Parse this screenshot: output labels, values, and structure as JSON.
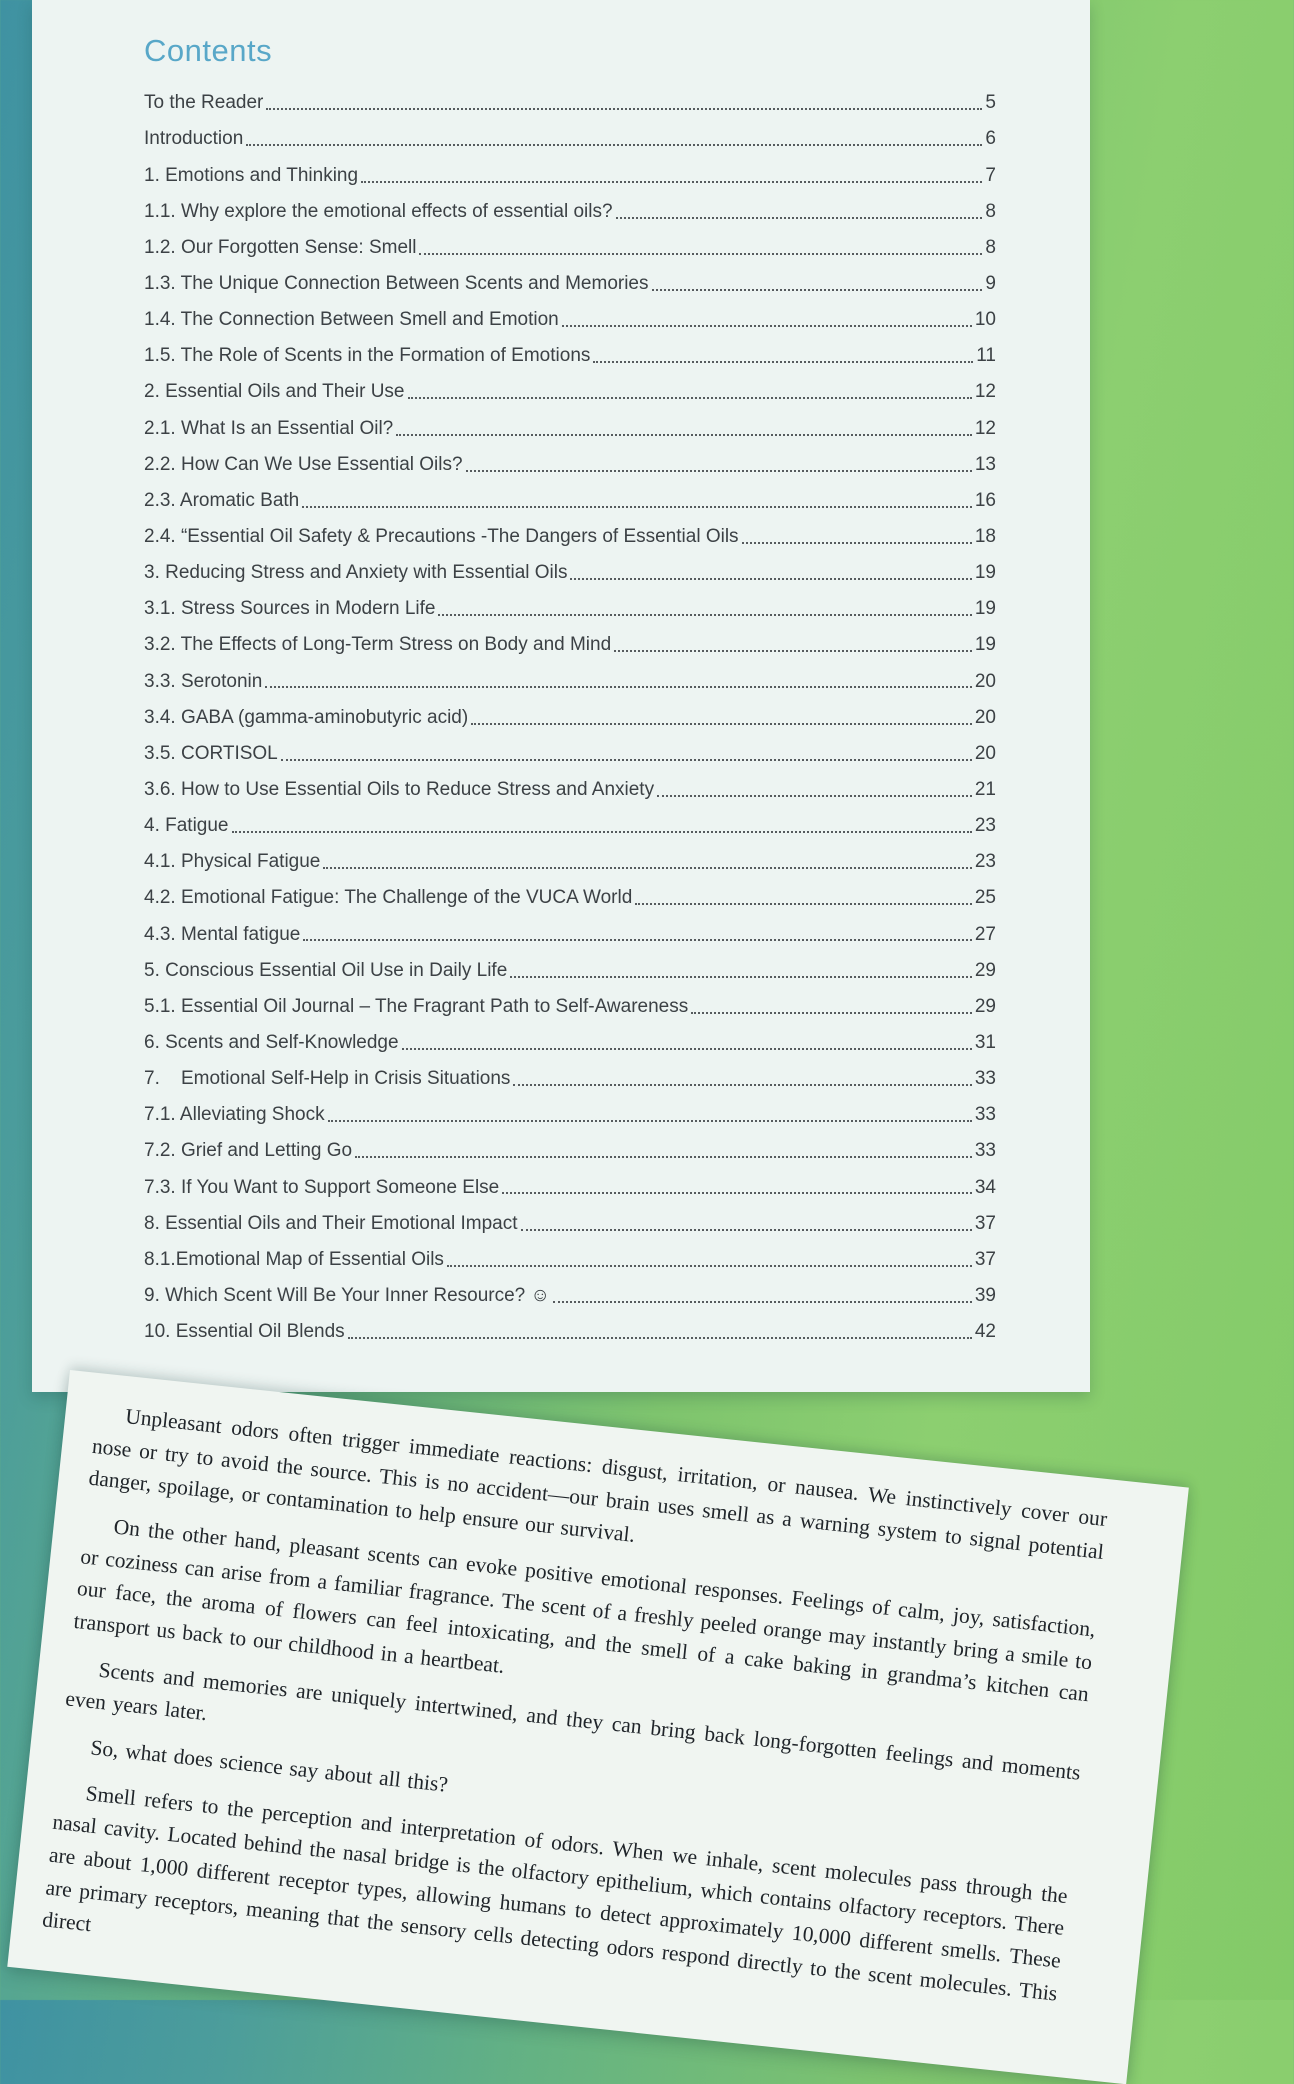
{
  "background": {
    "teal_color": "#3f92a2",
    "green_color": "#8ccf70"
  },
  "toc_page": {
    "title": "Contents",
    "title_color": "#58a7c8",
    "entries": [
      {
        "title": "To the Reader",
        "page": "5"
      },
      {
        "title": "Introduction",
        "page": "6"
      },
      {
        "title": "1. Emotions and Thinking",
        "page": "7"
      },
      {
        "title": "1.1. Why explore the emotional effects of essential oils?",
        "page": "8"
      },
      {
        "title": "1.2. Our Forgotten Sense: Smell",
        "page": "8"
      },
      {
        "title": "1.3. The Unique Connection Between Scents and Memories",
        "page": "9"
      },
      {
        "title": "1.4. The Connection Between Smell and Emotion",
        "page": "10"
      },
      {
        "title": "1.5. The Role of Scents in the Formation of Emotions",
        "page": "11"
      },
      {
        "title": "2. Essential Oils and Their Use",
        "page": "12"
      },
      {
        "title": "2.1. What Is an Essential Oil?",
        "page": "12"
      },
      {
        "title": "2.2. How Can We Use Essential Oils?",
        "page": "13"
      },
      {
        "title": "2.3. Aromatic Bath",
        "page": "16"
      },
      {
        "title": "2.4. “Essential Oil Safety & Precautions -The Dangers of Essential Oils",
        "page": "18"
      },
      {
        "title": "3. Reducing Stress and Anxiety with Essential Oils",
        "page": "19"
      },
      {
        "title": "3.1. Stress Sources in Modern Life",
        "page": "19"
      },
      {
        "title": "3.2. The Effects of Long-Term Stress on Body and Mind",
        "page": "19"
      },
      {
        "title": "3.3. Serotonin",
        "page": "20"
      },
      {
        "title": "3.4. GABA (gamma-aminobutyric acid)",
        "page": "20"
      },
      {
        "title": "3.5. CORTISOL",
        "page": "20"
      },
      {
        "title": "3.6. How to Use Essential Oils to Reduce Stress and Anxiety",
        "page": "21"
      },
      {
        "title": "4. Fatigue",
        "page": "23"
      },
      {
        "title": "4.1. Physical Fatigue",
        "page": "23"
      },
      {
        "title": "4.2. Emotional Fatigue: The Challenge of the VUCA World",
        "page": "25"
      },
      {
        "title": "4.3. Mental fatigue",
        "page": "27"
      },
      {
        "title": "5. Conscious Essential Oil Use in Daily Life",
        "page": "29"
      },
      {
        "title": "5.1. Essential Oil Journal – The Fragrant Path to Self-Awareness",
        "page": "29"
      },
      {
        "title": "6. Scents and Self-Knowledge",
        "page": "31"
      },
      {
        "title": "7.    Emotional Self-Help in Crisis Situations",
        "page": "33"
      },
      {
        "title": "7.1. Alleviating Shock",
        "page": "33"
      },
      {
        "title": "7.2. Grief and Letting Go",
        "page": "33"
      },
      {
        "title": "7.3. If You Want to Support Someone Else",
        "page": "34"
      },
      {
        "title": "8. Essential Oils and Their Emotional Impact",
        "page": "37"
      },
      {
        "title": "8.1.Emotional Map of Essential Oils",
        "page": "37"
      },
      {
        "title": "9. Which Scent Will Be Your Inner Resource? ☺",
        "page": "39"
      },
      {
        "title": "10. Essential Oil Blends",
        "page": "42"
      }
    ]
  },
  "article_page": {
    "paragraphs": [
      "Unpleasant odors often trigger immediate reactions: disgust, irritation, or nausea. We instinctively cover our nose or try to avoid the source. This is no accident—our brain uses smell as a warning system to signal potential danger, spoilage, or contamination to help ensure our survival.",
      "On the other hand, pleasant scents can evoke positive emotional responses. Feelings of calm, joy, satisfaction, or coziness can arise from a familiar fragrance. The scent of a freshly peeled orange may instantly bring a smile to our face, the aroma of flowers can feel intoxicating, and the smell of a cake baking in grandma’s kitchen can transport us back to our childhood in a heartbeat.",
      "Scents and memories are uniquely intertwined, and they can bring back long-forgotten feelings and moments even years later.",
      "So, what does science say about all this?",
      "Smell refers to the perception and interpretation of odors. When we inhale, scent molecules pass through the nasal cavity. Located behind the nasal bridge is the olfactory epithelium, which contains olfactory receptors. There are about 1,000 different receptor types, allowing humans to detect approximately 10,000 different smells. These are primary receptors, meaning that the sensory cells detecting odors respond directly to the scent molecules. This direct"
    ]
  }
}
